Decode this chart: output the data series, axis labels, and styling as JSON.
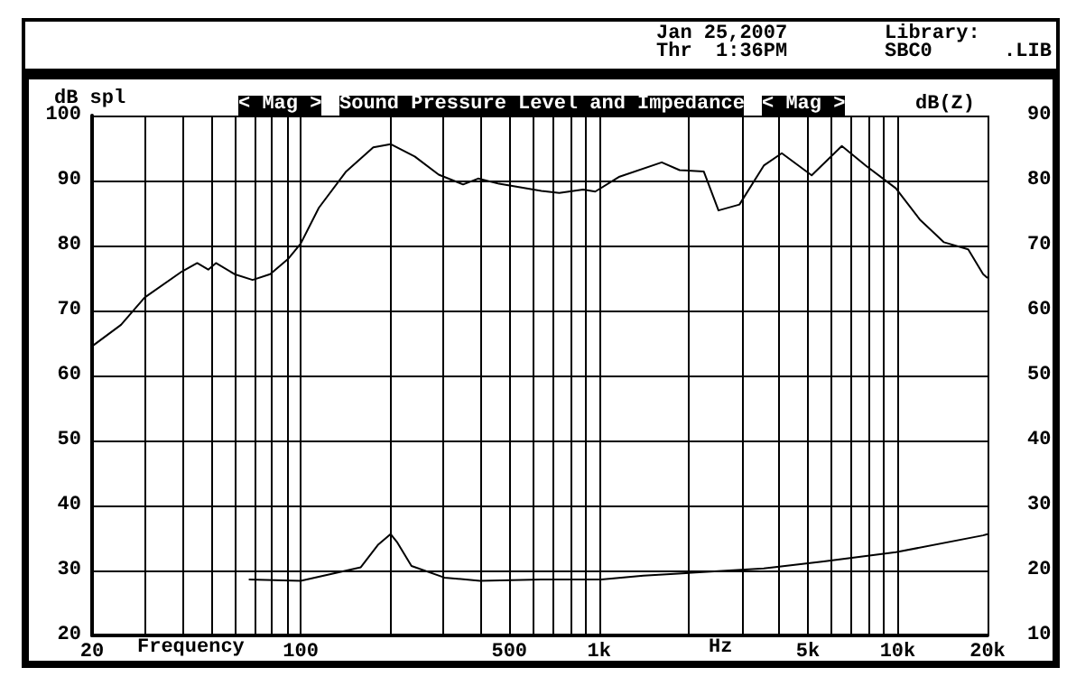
{
  "chart_data": {
    "type": "line",
    "title": "Sound Pressure Level and Impedance",
    "xlabel": "Frequency",
    "ylabel": "dB spl",
    "y2label": "dB(Z)",
    "annotations": [
      "< Mag >",
      "< Mag >",
      "Hz",
      "Jan 25,2007",
      "Thr  1:36PM",
      "Library:",
      "SBC0      .LIB"
    ],
    "log": "x",
    "grid": true,
    "marker": "none",
    "line_style": "solid",
    "xlim": [
      20,
      20000
    ],
    "xticks": [
      20,
      {
        "value": 30,
        "label": null
      },
      {
        "value": 40,
        "label": null
      },
      {
        "value": 50,
        "label": null
      },
      {
        "value": 60,
        "label": null
      },
      {
        "value": 70,
        "label": null
      },
      {
        "value": 80,
        "label": null
      },
      {
        "value": 90,
        "label": null
      },
      100,
      {
        "value": 200,
        "label": null
      },
      {
        "value": 300,
        "label": null
      },
      {
        "value": 400,
        "label": null
      },
      500,
      {
        "value": 600,
        "label": null
      },
      {
        "value": 700,
        "label": null
      },
      {
        "value": 800,
        "label": null
      },
      {
        "value": 900,
        "label": null
      },
      {
        "value": 1000,
        "label": "1k"
      },
      {
        "value": 2000,
        "label": null
      },
      {
        "value": 3000,
        "label": null
      },
      {
        "value": 4000,
        "label": null
      },
      {
        "value": 5000,
        "label": "5k"
      },
      {
        "value": 6000,
        "label": null
      },
      {
        "value": 7000,
        "label": null
      },
      {
        "value": 8000,
        "label": null
      },
      {
        "value": 9000,
        "label": null
      },
      {
        "value": 10000,
        "label": "10k"
      },
      {
        "value": 20000,
        "label": "20k"
      }
    ],
    "ylim": [
      20,
      100
    ],
    "yticks": [
      20,
      30,
      40,
      50,
      60,
      70,
      80,
      90,
      100
    ],
    "y2lim": [
      10,
      90
    ],
    "y2ticks": [
      10,
      20,
      30,
      40,
      50,
      60,
      70,
      80,
      90
    ],
    "series": [
      {
        "color": "#000000",
        "x": [
          20,
          25,
          30,
          40,
          45,
          49,
          52,
          60,
          69,
          79,
          91,
          100,
          115,
          142,
          175,
          200,
          241,
          290,
          350,
          393,
          462,
          640,
          735,
          883,
          970,
          1170,
          1620,
          1860,
          2240,
          2510,
          2950,
          3560,
          4090,
          5150,
          6500,
          7820,
          9860,
          11860,
          14290,
          17230,
          19330,
          20000
        ],
        "values": [
          64.5,
          67.8,
          72,
          76,
          77.3,
          76.3,
          77.3,
          75.6,
          74.7,
          75.6,
          78,
          80.3,
          85.8,
          91.4,
          95.1,
          95.6,
          93.7,
          90.9,
          89.4,
          90.3,
          89.5,
          88.4,
          88.1,
          88.6,
          88.3,
          90.6,
          92.8,
          91.6,
          91.4,
          85.4,
          86.3,
          92.3,
          94.2,
          90.8,
          95.3,
          92.3,
          88.8,
          84,
          80.5,
          79.4,
          75.6,
          75
        ]
      },
      {
        "color": "#000000",
        "axis": "y2",
        "x": [
          67,
          100,
          159,
          182,
          200,
          210,
          235,
          303,
          399,
          640,
          1016,
          1407,
          3560,
          5650,
          9860,
          19330,
          20000
        ],
        "values": [
          18.6,
          18.4,
          20.5,
          24,
          25.6,
          24.4,
          20.7,
          18.9,
          18.4,
          18.6,
          18.6,
          19.2,
          20.3,
          21.4,
          22.8,
          25.4,
          25.6
        ]
      }
    ]
  }
}
